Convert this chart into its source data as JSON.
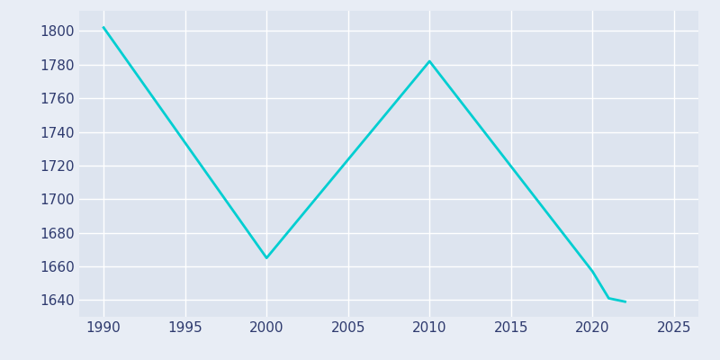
{
  "years": [
    1990,
    2000,
    2010,
    2020,
    2021,
    2022
  ],
  "population": [
    1802,
    1665,
    1782,
    1657,
    1641,
    1639
  ],
  "line_color": "#00CED1",
  "background_color": "#E8EDF5",
  "plot_bg_color": "#DDE4EF",
  "xlabel": "",
  "ylabel": "",
  "ylim": [
    1630,
    1812
  ],
  "xlim": [
    1988.5,
    2026.5
  ],
  "yticks": [
    1640,
    1660,
    1680,
    1700,
    1720,
    1740,
    1760,
    1780,
    1800
  ],
  "xticks": [
    1990,
    1995,
    2000,
    2005,
    2010,
    2015,
    2020,
    2025
  ],
  "tick_color": "#2E3A6E",
  "grid_color": "#ffffff",
  "line_width": 2.0,
  "figsize": [
    8.0,
    4.0
  ],
  "dpi": 100
}
